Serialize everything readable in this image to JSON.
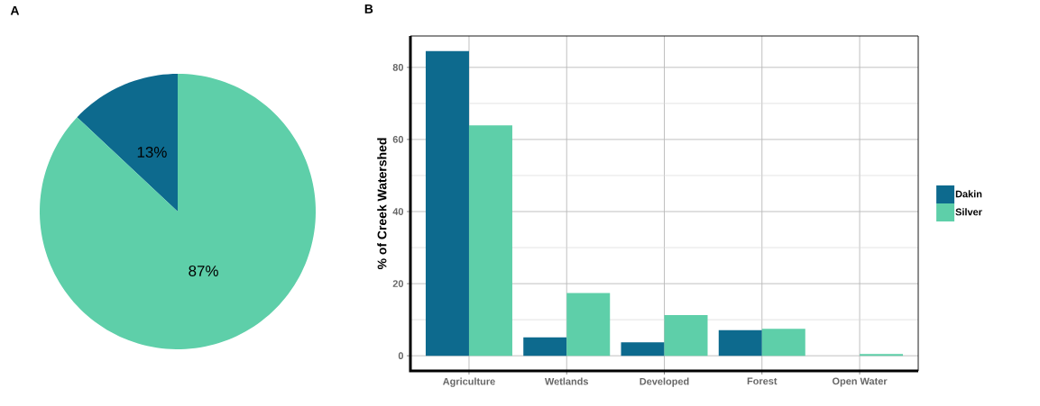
{
  "chart_data": [
    {
      "type": "pie",
      "title": "A",
      "categories": [
        null,
        null
      ],
      "values": [
        13,
        87
      ],
      "colors": [
        "#0d6a8e",
        "#5ecfa9"
      ],
      "value_labels": [
        "13%",
        "87%"
      ]
    },
    {
      "type": "bar",
      "title": "B",
      "ylabel": "% of Creek Watershed",
      "categories": [
        "Agriculture",
        "Wetlands",
        "Developed",
        "Forest",
        "Open Water"
      ],
      "series": [
        {
          "name": "Dakin",
          "color": "#0d6a8e",
          "values": [
            84.5,
            5.1,
            3.7,
            7.1,
            0
          ]
        },
        {
          "name": "Silver",
          "color": "#5ecfa9",
          "values": [
            63.9,
            17.4,
            11.3,
            7.5,
            0.5
          ]
        }
      ],
      "ylim": [
        -4.2,
        88.7
      ],
      "yticks": [
        0,
        {
          "value": 10,
          "label": null
        },
        20,
        {
          "value": 30,
          "label": null
        },
        40,
        {
          "value": 50,
          "label": null
        },
        60,
        {
          "value": 70,
          "label": null
        },
        80
      ],
      "grid": true,
      "legend": "right"
    }
  ]
}
